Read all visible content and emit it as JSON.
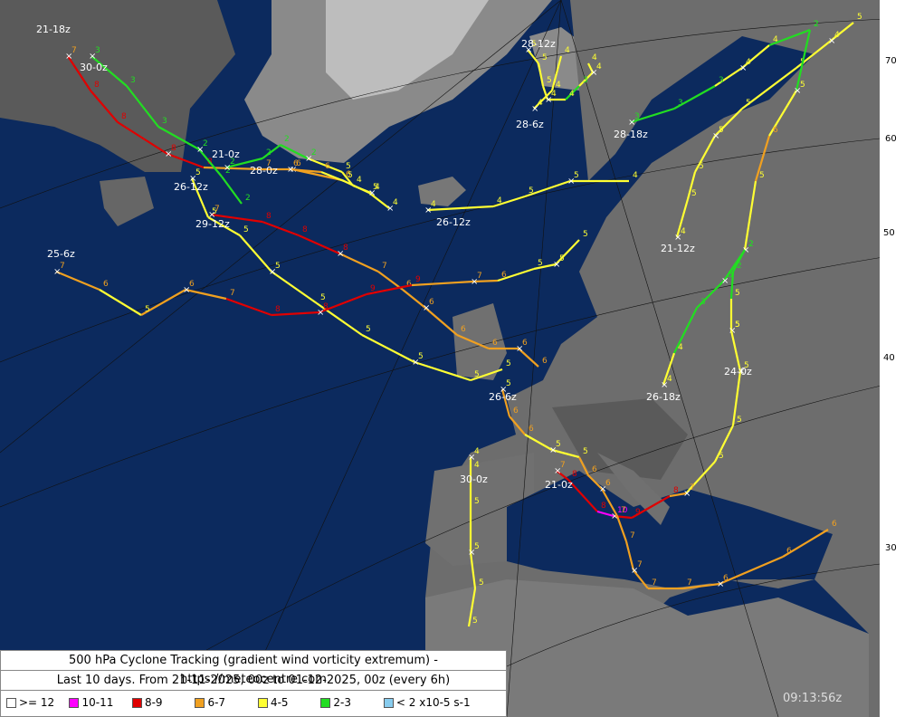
{
  "title": "500 hPa Cyclone Tracking (gradient wind vorticity extremum) - https://meteocentre.com",
  "subtitle": "Last 10 days. From 21-11-2025, 00z to 01-12-2025, 00z (every 6h)",
  "legend": [
    {
      "label": ">= 12",
      "color": "#ffffff"
    },
    {
      "label": "10-11",
      "color": "#ff00ff"
    },
    {
      "label": "8-9",
      "color": "#e00000"
    },
    {
      "label": "6-7",
      "color": "#f0a020"
    },
    {
      "label": "4-5",
      "color": "#ffff33"
    },
    {
      "label": "2-3",
      "color": "#22dd22"
    },
    {
      "label": "< 2 x10-5 s-1",
      "color": "#88ccee"
    }
  ],
  "timestamp": "09:13:56z",
  "lat_labels": [
    "70",
    "60",
    "50",
    "40",
    "30"
  ],
  "tracks": [
    {
      "label": "21-18z",
      "values": [
        7,
        8,
        8,
        8,
        8,
        7,
        6,
        6,
        5,
        4
      ],
      "colors": [
        "#f0a020",
        "#e00000",
        "#e00000",
        "#e00000",
        "#e00000",
        "#f0a020",
        "#f0a020",
        "#f0a020",
        "#ffff33",
        "#ffff33"
      ]
    },
    {
      "label": "30-0z",
      "values": [
        3,
        3,
        3,
        2,
        2,
        2
      ],
      "colors": [
        "#22dd22",
        "#22dd22",
        "#22dd22",
        "#22dd22",
        "#22dd22",
        "#22dd22"
      ]
    },
    {
      "label": "21-0z",
      "values": [
        2,
        2,
        2,
        2,
        5,
        4,
        4
      ],
      "colors": [
        "#22dd22",
        "#22dd22",
        "#22dd22",
        "#22dd22",
        "#ffff33",
        "#ffff33",
        "#ffff33"
      ]
    },
    {
      "label": "28-0z",
      "values": [
        6,
        6,
        5
      ],
      "colors": [
        "#f0a020",
        "#f0a020",
        "#ffff33"
      ]
    },
    {
      "label": "26-12z",
      "values": [
        5,
        5,
        5,
        5,
        5,
        5,
        5,
        5,
        5
      ],
      "colors": [
        "#ffff33",
        "#ffff33",
        "#ffff33",
        "#ffff33",
        "#ffff33",
        "#ffff33",
        "#ffff33",
        "#ffff33",
        "#ffff33"
      ]
    },
    {
      "label": "29-12z",
      "values": [
        7,
        8,
        8,
        8,
        7,
        6,
        6,
        6,
        6,
        6,
        6
      ],
      "colors": [
        "#f0a020",
        "#e00000",
        "#e00000",
        "#e00000",
        "#f0a020",
        "#f0a020",
        "#f0a020",
        "#f0a020",
        "#f0a020",
        "#f0a020",
        "#f0a020"
      ]
    },
    {
      "label": "25-6z",
      "values": [
        7,
        6,
        5,
        6,
        7,
        8,
        8,
        9,
        9,
        7,
        6,
        5,
        5,
        5
      ],
      "colors": [
        "#f0a020",
        "#f0a020",
        "#ffff33",
        "#f0a020",
        "#f0a020",
        "#e00000",
        "#e00000",
        "#e00000",
        "#e00000",
        "#f0a020",
        "#f0a020",
        "#ffff33",
        "#ffff33",
        "#ffff33"
      ]
    },
    {
      "label": "26-12z",
      "values": [
        4,
        4,
        5,
        5,
        4
      ],
      "colors": [
        "#ffff33",
        "#ffff33",
        "#ffff33",
        "#ffff33",
        "#ffff33"
      ]
    },
    {
      "label": "28-18z",
      "values": [
        3,
        3,
        3,
        4,
        4,
        2
      ],
      "colors": [
        "#22dd22",
        "#22dd22",
        "#22dd22",
        "#ffff33",
        "#ffff33",
        "#22dd22"
      ]
    },
    {
      "label": "28-12z",
      "values": [
        5,
        5,
        5,
        4,
        4,
        3,
        4,
        4
      ],
      "colors": [
        "#ffff33",
        "#ffff33",
        "#ffff33",
        "#ffff33",
        "#ffff33",
        "#22dd22",
        "#ffff33",
        "#ffff33"
      ]
    },
    {
      "label": "28-6z",
      "values": [
        4,
        4,
        4
      ],
      "colors": [
        "#ffff33",
        "#ffff33",
        "#ffff33"
      ]
    },
    {
      "label": "21-12z",
      "values": [
        4,
        5,
        5,
        5,
        5,
        5,
        4,
        5
      ],
      "colors": [
        "#ffff33",
        "#ffff33",
        "#ffff33",
        "#ffff33",
        "#ffff33",
        "#ffff33",
        "#ffff33",
        "#ffff33"
      ]
    },
    {
      "label": "24-0z",
      "values": [
        5,
        5,
        2,
        2,
        5,
        6,
        5,
        2
      ],
      "colors": [
        "#ffff33",
        "#ffff33",
        "#22dd22",
        "#22dd22",
        "#ffff33",
        "#f0a020",
        "#ffff33",
        "#22dd22"
      ]
    },
    {
      "label": "26-18z",
      "values": [
        4,
        4,
        3,
        3,
        2
      ],
      "colors": [
        "#ffff33",
        "#ffff33",
        "#22dd22",
        "#22dd22",
        "#22dd22"
      ]
    },
    {
      "label": "30-0z",
      "values": [
        4,
        4,
        5,
        5,
        5,
        5
      ],
      "colors": [
        "#ffff33",
        "#ffff33",
        "#ffff33",
        "#ffff33",
        "#ffff33",
        "#ffff33"
      ]
    },
    {
      "label": "21-0z",
      "values": [
        7,
        8,
        8,
        10,
        9,
        8,
        7,
        5,
        5,
        5,
        5
      ],
      "colors": [
        "#f0a020",
        "#e00000",
        "#e00000",
        "#ff00ff",
        "#e00000",
        "#e00000",
        "#f0a020",
        "#ffff33",
        "#ffff33",
        "#ffff33",
        "#ffff33"
      ]
    },
    {
      "label": "26-6z",
      "values": [
        5,
        6,
        6,
        5,
        5,
        6,
        6,
        7,
        7,
        7,
        7,
        7,
        6,
        6,
        6
      ],
      "colors": [
        "#ffff33",
        "#f0a020",
        "#f0a020",
        "#ffff33",
        "#ffff33",
        "#f0a020",
        "#f0a020",
        "#f0a020",
        "#f0a020",
        "#f0a020",
        "#f0a020",
        "#f0a020",
        "#f0a020",
        "#f0a020",
        "#f0a020"
      ]
    }
  ]
}
